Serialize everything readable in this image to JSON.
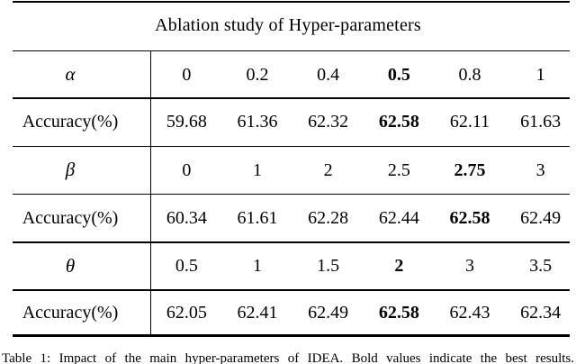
{
  "title": "Ablation study of Hyper-parameters",
  "table": {
    "rows": [
      {
        "label": "α",
        "label_style": "greek",
        "values": [
          "0",
          "0.2",
          "0.4",
          "0.5",
          "0.8",
          "1"
        ],
        "bold_index": 3
      },
      {
        "label": "Accuracy(%)",
        "label_style": "plain",
        "values": [
          "59.68",
          "61.36",
          "62.32",
          "62.58",
          "62.11",
          "61.63"
        ],
        "bold_index": 3
      },
      {
        "label": "β",
        "label_style": "greek",
        "values": [
          "0",
          "1",
          "2",
          "2.5",
          "2.75",
          "3"
        ],
        "bold_index": 4
      },
      {
        "label": "Accuracy(%)",
        "label_style": "plain",
        "values": [
          "60.34",
          "61.61",
          "62.28",
          "62.44",
          "62.58",
          "62.49"
        ],
        "bold_index": 4
      },
      {
        "label": "θ",
        "label_style": "greek",
        "values": [
          "0.5",
          "1",
          "1.5",
          "2",
          "3",
          "3.5"
        ],
        "bold_index": 3
      },
      {
        "label": "Accuracy(%)",
        "label_style": "plain",
        "values": [
          "62.05",
          "62.41",
          "62.49",
          "62.58",
          "62.43",
          "62.34"
        ],
        "bold_index": 3
      }
    ]
  },
  "caption": "Table 1: Impact of the main hyper-parameters of IDEA. Bold values indicate the best results.",
  "colors": {
    "background": "#ffffff",
    "text": "#000000",
    "rule": "#000000"
  }
}
